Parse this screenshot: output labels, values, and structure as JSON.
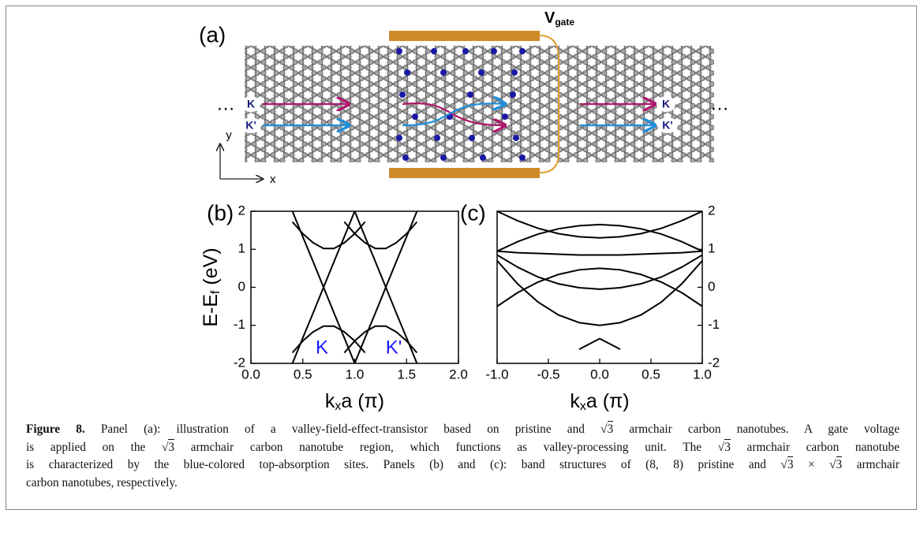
{
  "panel_a": {
    "label": "(a)",
    "gate": {
      "main": "V",
      "sub": "gate"
    },
    "k": "K",
    "k_prime": "K'",
    "ellipsis": "…",
    "x_axis": "x",
    "y_axis": "y"
  },
  "chart_data": [
    {
      "type": "line",
      "label": "(b)",
      "x": [
        0,
        0.1,
        0.2,
        0.3,
        0.4,
        0.5,
        0.6,
        0.7,
        0.8,
        0.9,
        1.0,
        1.1,
        1.2,
        1.3,
        1.4,
        1.5,
        1.6,
        1.7,
        1.8,
        1.9,
        2.0
      ],
      "series": [
        {
          "color": "#000000",
          "values": [
            null,
            null,
            null,
            null,
            2,
            1.33,
            0.67,
            0,
            -0.67,
            -1.33,
            -2,
            null,
            null,
            null,
            null,
            null,
            null,
            null,
            null,
            null,
            null
          ]
        },
        {
          "color": "#000000",
          "values": [
            null,
            null,
            null,
            null,
            -2,
            -1.33,
            -0.67,
            0,
            0.67,
            1.33,
            2,
            null,
            null,
            null,
            null,
            null,
            null,
            null,
            null,
            null,
            null
          ]
        },
        {
          "color": "#000000",
          "values": [
            null,
            null,
            null,
            null,
            null,
            null,
            null,
            null,
            null,
            null,
            -2,
            -1.33,
            -0.67,
            0,
            0.67,
            1.33,
            2,
            null,
            null,
            null,
            null
          ]
        },
        {
          "color": "#000000",
          "values": [
            null,
            null,
            null,
            null,
            null,
            null,
            null,
            null,
            null,
            null,
            2,
            1.33,
            0.67,
            0,
            -0.67,
            -1.33,
            -2,
            null,
            null,
            null,
            null
          ]
        },
        {
          "color": "#000000",
          "values": [
            null,
            null,
            null,
            null,
            1.72,
            1.41,
            1.17,
            1.02,
            1.02,
            1.17,
            1.41,
            1.72,
            null,
            null,
            null,
            null,
            null,
            null,
            null,
            null,
            null
          ]
        },
        {
          "color": "#000000",
          "values": [
            null,
            null,
            null,
            null,
            -1.72,
            -1.41,
            -1.17,
            -1.02,
            -1.02,
            -1.17,
            -1.41,
            -1.72,
            null,
            null,
            null,
            null,
            null,
            null,
            null,
            null,
            null
          ]
        },
        {
          "color": "#000000",
          "values": [
            null,
            null,
            null,
            null,
            null,
            null,
            null,
            null,
            null,
            1.72,
            1.41,
            1.17,
            1.02,
            1.02,
            1.17,
            1.41,
            1.72,
            null,
            null,
            null,
            null
          ]
        },
        {
          "color": "#000000",
          "values": [
            null,
            null,
            null,
            null,
            null,
            null,
            null,
            null,
            null,
            -1.72,
            -1.41,
            -1.17,
            -1.02,
            -1.02,
            -1.17,
            -1.41,
            -1.72,
            null,
            null,
            null,
            null
          ]
        }
      ],
      "xlim": [
        0,
        2
      ],
      "ylim": [
        -2,
        2
      ],
      "xticks": [
        {
          "value": 0,
          "label": "0.0"
        },
        0.5,
        {
          "value": 1,
          "label": "1.0"
        },
        1.5,
        {
          "value": 2,
          "label": "2.0"
        }
      ],
      "yticks": [
        -2,
        -1,
        0,
        1,
        2
      ],
      "xlabel": {
        "main": "k",
        "sub": "x",
        "rest": "a (π)"
      },
      "ylabel": {
        "main": "E-E",
        "sub": "f",
        "rest": " (eV)"
      },
      "annotations": [
        {
          "text": "K",
          "color": "#1a1aff"
        },
        {
          "text": "K'",
          "color": "#1a1aff"
        }
      ],
      "y_axis_side": "left"
    },
    {
      "type": "line",
      "label": "(c)",
      "x": [
        -1,
        -0.8,
        -0.6,
        -0.4,
        -0.2,
        0,
        0.2,
        0.4,
        0.6,
        0.8,
        1
      ],
      "series": [
        {
          "color": "#000000",
          "values": [
            2,
            1.75,
            1.55,
            1.41,
            1.33,
            1.3,
            1.33,
            1.41,
            1.55,
            1.75,
            2
          ]
        },
        {
          "color": "#000000",
          "values": [
            0.95,
            0.91,
            0.89,
            0.87,
            0.85,
            0.85,
            0.85,
            0.87,
            0.89,
            0.91,
            0.95
          ]
        },
        {
          "color": "#000000",
          "values": [
            0.95,
            1.2,
            1.4,
            1.54,
            1.62,
            1.65,
            1.62,
            1.54,
            1.4,
            1.2,
            0.95
          ]
        },
        {
          "color": "#000000",
          "values": [
            0.85,
            0.53,
            0.27,
            0.09,
            -0.01,
            -0.05,
            -0.01,
            0.09,
            0.27,
            0.53,
            0.85
          ]
        },
        {
          "color": "#000000",
          "values": [
            0.7,
            0.09,
            -0.39,
            -0.73,
            -0.93,
            -1.0,
            -0.93,
            -0.73,
            -0.39,
            0.09,
            0.7
          ]
        },
        {
          "color": "#000000",
          "values": [
            null,
            null,
            null,
            null,
            -1.63,
            -1.35,
            -1.63,
            null,
            null,
            null,
            null
          ]
        },
        {
          "color": "#000000",
          "values": [
            -0.5,
            -0.14,
            0.14,
            0.34,
            0.46,
            0.5,
            0.46,
            0.34,
            0.14,
            -0.14,
            -0.5
          ]
        }
      ],
      "xlim": [
        -1,
        1
      ],
      "ylim": [
        -2,
        2
      ],
      "xticks": [
        {
          "value": -1,
          "label": "-1.0"
        },
        -0.5,
        {
          "value": 0,
          "label": "0.0"
        },
        0.5,
        {
          "value": 1,
          "label": "1.0"
        }
      ],
      "yticks": [
        -2,
        -1,
        0,
        1,
        2
      ],
      "xlabel": {
        "main": "k",
        "sub": "x",
        "rest": "a (π)"
      },
      "y_axis_side": "right"
    }
  ],
  "caption": {
    "label": "Figure 8.",
    "lines": [
      [
        " Panel (a): illustration of a valley-field-effect-transistor based on pristine and ",
        {
          "root": "3"
        },
        " armchair carbon nanotubes. A gate voltage"
      ],
      [
        "is applied on the ",
        {
          "root": "3"
        },
        " armchair carbon nanotube region, which functions as valley-processing unit. The ",
        {
          "root": "3"
        },
        " armchair carbon nanotube"
      ],
      [
        "is characterized by the blue-colored top-absorption sites. Panels (b) and (c): band structures of (8, 8) pristine and ",
        {
          "root": "3"
        },
        " × ",
        {
          "root": "3"
        },
        " armchair"
      ],
      [
        "carbon nanotubes, respectively."
      ]
    ]
  }
}
